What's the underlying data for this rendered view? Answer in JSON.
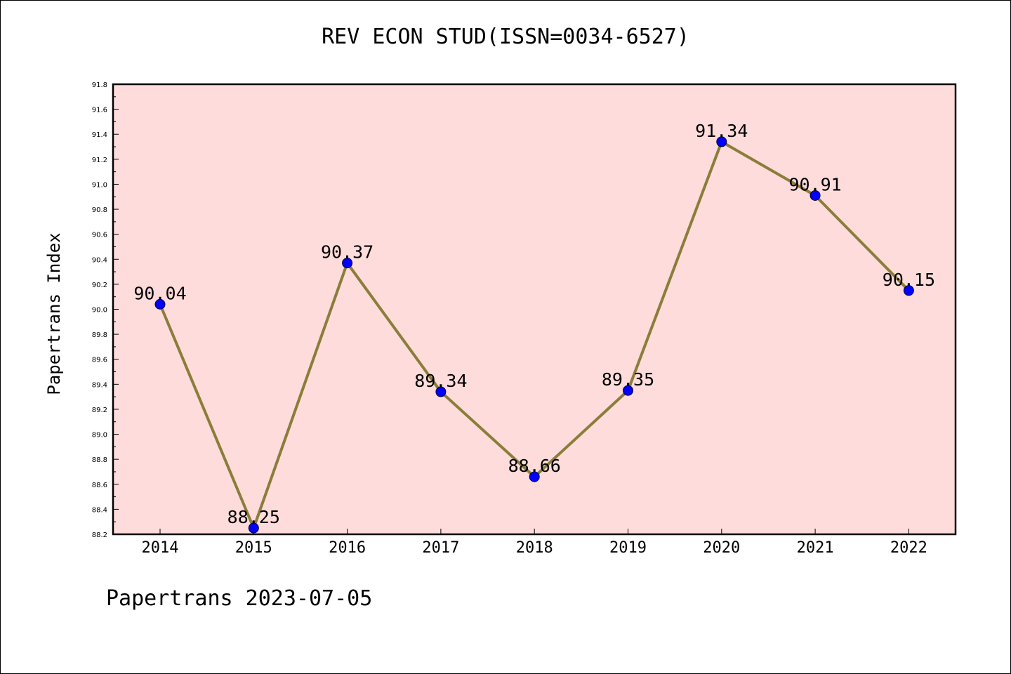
{
  "chart_data": {
    "type": "line",
    "title": "REV ECON STUD(ISSN=0034-6527)",
    "xlabel": "",
    "ylabel": "Papertrans Index",
    "categories": [
      "2014",
      "2015",
      "2016",
      "2017",
      "2018",
      "2019",
      "2020",
      "2021",
      "2022"
    ],
    "series": [
      {
        "values": [
          90.04,
          88.25,
          90.37,
          89.34,
          88.66,
          89.35,
          91.34,
          90.91,
          90.15
        ]
      }
    ],
    "data_labels": [
      "90.04",
      "88.25",
      "90.37",
      "89.34",
      "88.66",
      "89.35",
      "91.34",
      "90.91",
      "90.15"
    ],
    "ylim": [
      88.2,
      91.8
    ],
    "yticks": [
      "88.2",
      "88.4",
      "88.6",
      "88.8",
      "89.0",
      "89.2",
      "89.4",
      "89.6",
      "89.8",
      "90.0",
      "90.2",
      "90.4",
      "90.6",
      "90.8",
      "91.0",
      "91.2",
      "91.4",
      "91.6",
      "91.8"
    ],
    "grid": false,
    "colors": {
      "plot_background": "#fddcdb",
      "line": "#8b7d3a",
      "marker": "#0000ff"
    }
  },
  "footer": "Papertrans 2023-07-05"
}
